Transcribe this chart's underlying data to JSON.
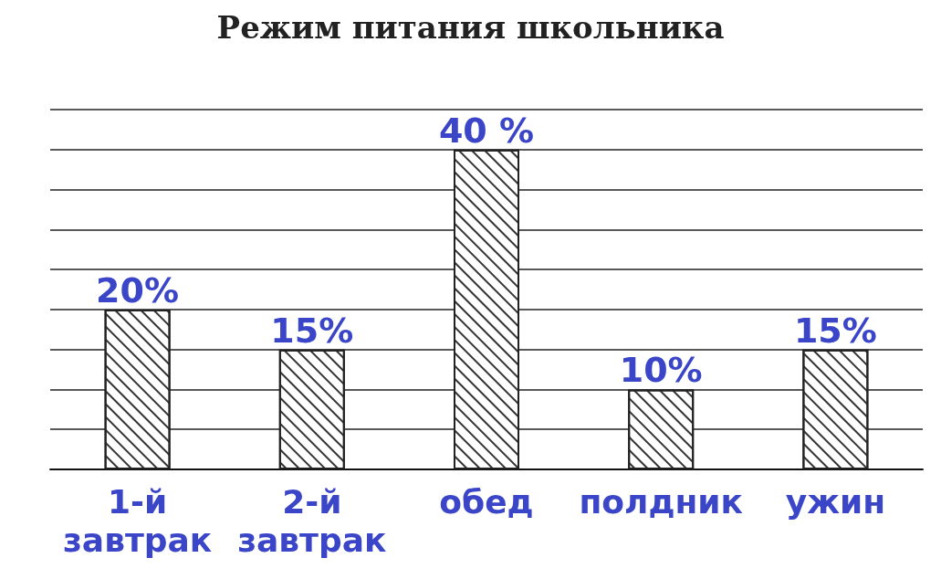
{
  "chart_data": {
    "type": "bar",
    "title": "Режим питания школьника",
    "categories": [
      "1-й завтрак",
      "2-й завтрак",
      "обед",
      "полдник",
      "ужин"
    ],
    "values": [
      20,
      15,
      40,
      10,
      15
    ],
    "value_labels": [
      "20%",
      "15%",
      "40 %",
      "10%",
      "15%"
    ],
    "color": "#ffffff",
    "ylim": [
      0,
      45
    ],
    "yticks": [
      {
        "value": 0,
        "label": null
      },
      {
        "value": 5,
        "label": null
      },
      {
        "value": 10,
        "label": null
      },
      {
        "value": 15,
        "label": null
      },
      {
        "value": 20,
        "label": null
      },
      {
        "value": 25,
        "label": null
      },
      {
        "value": 30,
        "label": null
      },
      {
        "value": 35,
        "label": null
      },
      {
        "value": 40,
        "label": null
      },
      {
        "value": 45,
        "label": null
      }
    ],
    "tick_labels": "x",
    "grid": "y"
  }
}
